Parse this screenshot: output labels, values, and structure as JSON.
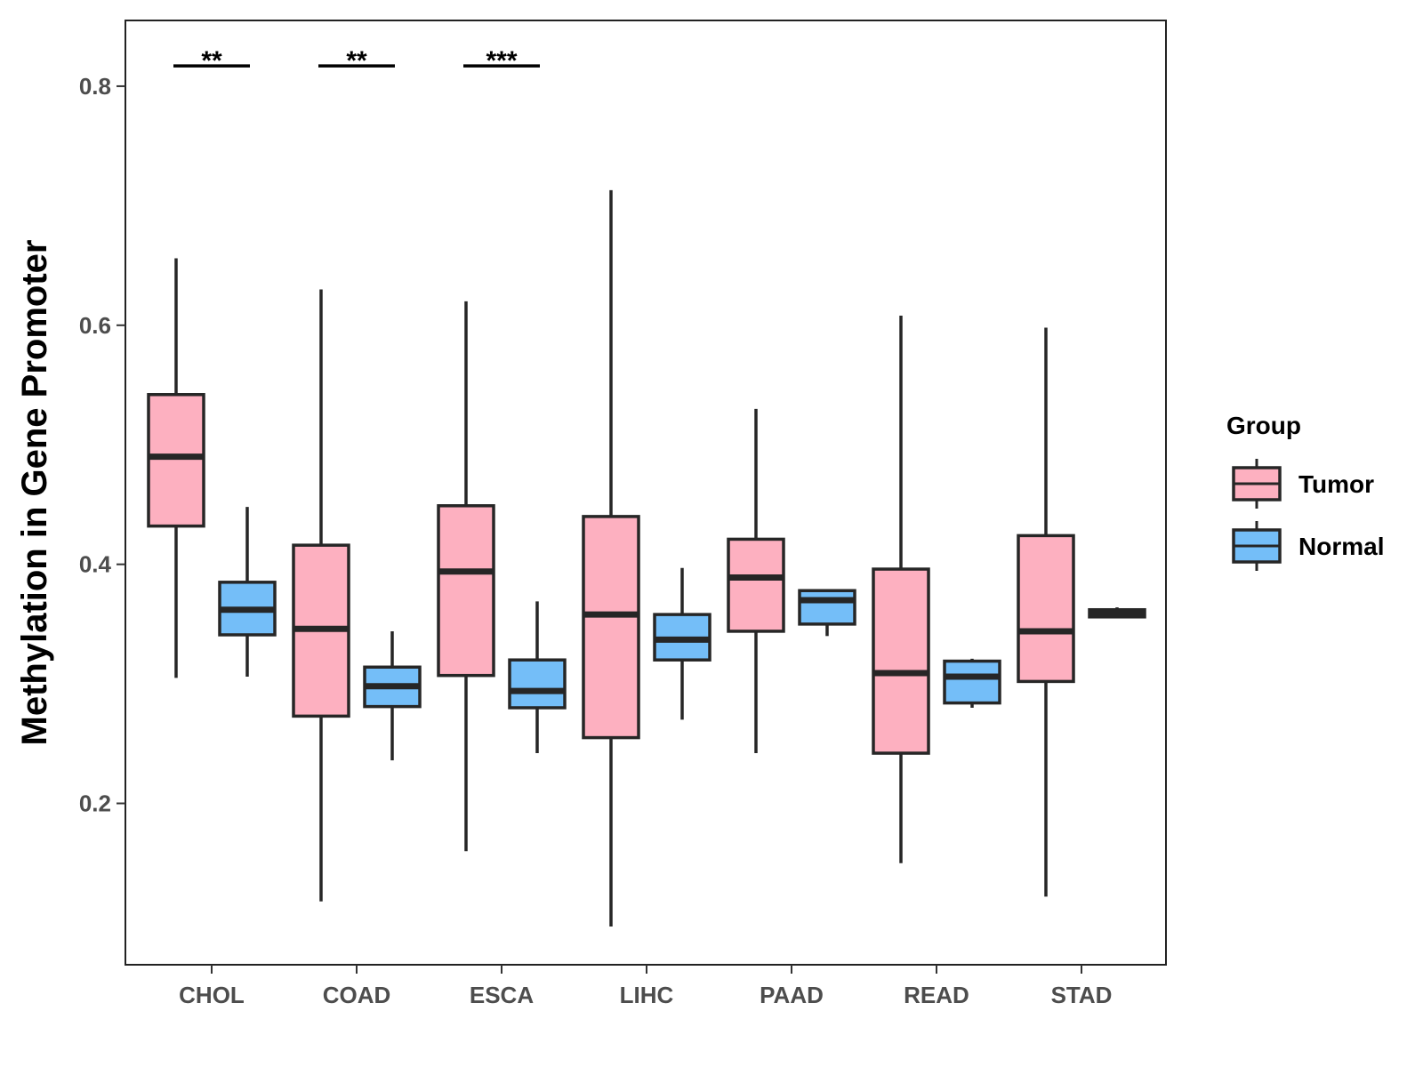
{
  "chart_data": {
    "type": "boxplot",
    "title": "",
    "xlabel": "",
    "ylabel": "Methylation in Gene Promoter",
    "ylim": [
      0.065,
      0.855
    ],
    "yticks": [
      0.2,
      0.4,
      0.6,
      0.8
    ],
    "ytick_labels": [
      "0.2",
      "0.4",
      "0.6",
      "0.8"
    ],
    "categories": [
      "CHOL",
      "COAD",
      "ESCA",
      "LIHC",
      "PAAD",
      "READ",
      "STAD"
    ],
    "legend": {
      "title": "Group",
      "position": "right",
      "entries": [
        "Tumor",
        "Normal"
      ]
    },
    "colors": {
      "Tumor": "#FDB0C0",
      "Normal": "#74BEF8",
      "outline": "#262626"
    },
    "series": [
      {
        "name": "Tumor",
        "boxes": [
          {
            "category": "CHOL",
            "whisker_low": 0.305,
            "q1": 0.432,
            "median": 0.49,
            "q3": 0.542,
            "whisker_high": 0.656
          },
          {
            "category": "COAD",
            "whisker_low": 0.118,
            "q1": 0.273,
            "median": 0.346,
            "q3": 0.416,
            "whisker_high": 0.63
          },
          {
            "category": "ESCA",
            "whisker_low": 0.16,
            "q1": 0.307,
            "median": 0.394,
            "q3": 0.449,
            "whisker_high": 0.62
          },
          {
            "category": "LIHC",
            "whisker_low": 0.097,
            "q1": 0.255,
            "median": 0.358,
            "q3": 0.44,
            "whisker_high": 0.713
          },
          {
            "category": "PAAD",
            "whisker_low": 0.242,
            "q1": 0.344,
            "median": 0.389,
            "q3": 0.421,
            "whisker_high": 0.53
          },
          {
            "category": "READ",
            "whisker_low": 0.15,
            "q1": 0.242,
            "median": 0.309,
            "q3": 0.396,
            "whisker_high": 0.608
          },
          {
            "category": "STAD",
            "whisker_low": 0.122,
            "q1": 0.302,
            "median": 0.344,
            "q3": 0.424,
            "whisker_high": 0.598
          }
        ]
      },
      {
        "name": "Normal",
        "boxes": [
          {
            "category": "CHOL",
            "whisker_low": 0.306,
            "q1": 0.341,
            "median": 0.362,
            "q3": 0.385,
            "whisker_high": 0.448
          },
          {
            "category": "COAD",
            "whisker_low": 0.236,
            "q1": 0.281,
            "median": 0.298,
            "q3": 0.314,
            "whisker_high": 0.344
          },
          {
            "category": "ESCA",
            "whisker_low": 0.242,
            "q1": 0.28,
            "median": 0.294,
            "q3": 0.32,
            "whisker_high": 0.369
          },
          {
            "category": "LIHC",
            "whisker_low": 0.27,
            "q1": 0.32,
            "median": 0.337,
            "q3": 0.358,
            "whisker_high": 0.397
          },
          {
            "category": "PAAD",
            "whisker_low": 0.34,
            "q1": 0.35,
            "median": 0.37,
            "q3": 0.378,
            "whisker_high": 0.378
          },
          {
            "category": "READ",
            "whisker_low": 0.28,
            "q1": 0.284,
            "median": 0.306,
            "q3": 0.319,
            "whisker_high": 0.321
          },
          {
            "category": "STAD",
            "whisker_low": 0.355,
            "q1": 0.356,
            "median": 0.359,
            "q3": 0.362,
            "whisker_high": 0.364
          }
        ]
      }
    ],
    "annotations": [
      {
        "category": "CHOL",
        "label": "**",
        "y": 0.817
      },
      {
        "category": "COAD",
        "label": "**",
        "y": 0.817
      },
      {
        "category": "ESCA",
        "label": "***",
        "y": 0.817
      }
    ]
  }
}
